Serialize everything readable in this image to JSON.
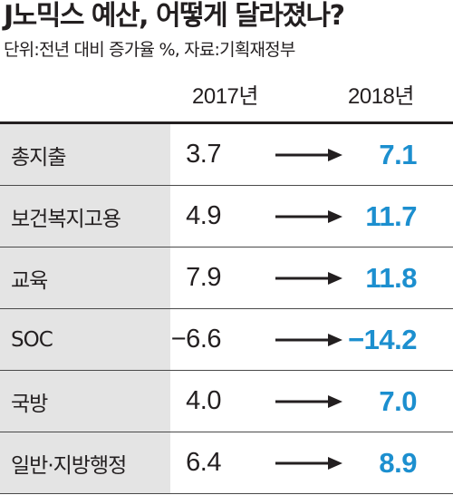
{
  "title": "J노믹스 예산, 어떻게 달라졌나?",
  "subtitle": "단위:전년 대비 증가율 %, 자료:기획재정부",
  "colors": {
    "text": "#231f20",
    "highlight": "#1c8fcf",
    "category_bg": "#e4e4e4",
    "rule": "#231f20"
  },
  "icons": {
    "arrow": "right-arrow-icon"
  },
  "chart_data": {
    "type": "table",
    "title": "J노믹스 예산, 어떻게 달라졌나?",
    "subtitle": "단위:전년 대비 증가율 %, 자료:기획재정부",
    "columns": [
      "2017년",
      "2018년"
    ],
    "categories": [
      "총지출",
      "보건복지고용",
      "교육",
      "SOC",
      "국방",
      "일반·지방행정"
    ],
    "series": [
      {
        "name": "2017년",
        "values": [
          "3.7",
          "4.9",
          "7.9",
          "−6.6",
          "4.0",
          "6.4"
        ]
      },
      {
        "name": "2018년",
        "values": [
          "7.1",
          "11.7",
          "11.8",
          "−14.2",
          "7.0",
          "8.9"
        ]
      }
    ]
  }
}
